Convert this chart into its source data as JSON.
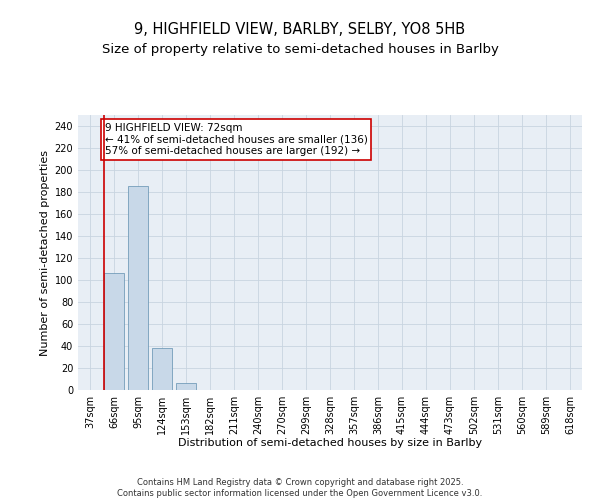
{
  "title_line1": "9, HIGHFIELD VIEW, BARLBY, SELBY, YO8 5HB",
  "title_line2": "Size of property relative to semi-detached houses in Barlby",
  "xlabel": "Distribution of semi-detached houses by size in Barlby",
  "ylabel": "Number of semi-detached properties",
  "categories": [
    "37sqm",
    "66sqm",
    "95sqm",
    "124sqm",
    "153sqm",
    "182sqm",
    "211sqm",
    "240sqm",
    "270sqm",
    "299sqm",
    "328sqm",
    "357sqm",
    "386sqm",
    "415sqm",
    "444sqm",
    "473sqm",
    "502sqm",
    "531sqm",
    "560sqm",
    "589sqm",
    "618sqm"
  ],
  "values": [
    0,
    106,
    185,
    38,
    6,
    0,
    0,
    0,
    0,
    0,
    0,
    0,
    0,
    0,
    0,
    0,
    0,
    0,
    0,
    0,
    0
  ],
  "bar_color": "#c8d8e8",
  "bar_edge_color": "#6090b0",
  "highlight_bar_index": 1,
  "highlight_color": "#cc0000",
  "ylim": [
    0,
    250
  ],
  "yticks": [
    0,
    20,
    40,
    60,
    80,
    100,
    120,
    140,
    160,
    180,
    200,
    220,
    240
  ],
  "annotation_text": "9 HIGHFIELD VIEW: 72sqm\n← 41% of semi-detached houses are smaller (136)\n57% of semi-detached houses are larger (192) →",
  "annotation_box_color": "#cc0000",
  "grid_color": "#c8d4e0",
  "background_color": "#e8eef5",
  "footer_text": "Contains HM Land Registry data © Crown copyright and database right 2025.\nContains public sector information licensed under the Open Government Licence v3.0.",
  "title_fontsize": 10.5,
  "subtitle_fontsize": 9.5,
  "axis_label_fontsize": 8,
  "tick_fontsize": 7,
  "annotation_fontsize": 7.5,
  "footer_fontsize": 6
}
